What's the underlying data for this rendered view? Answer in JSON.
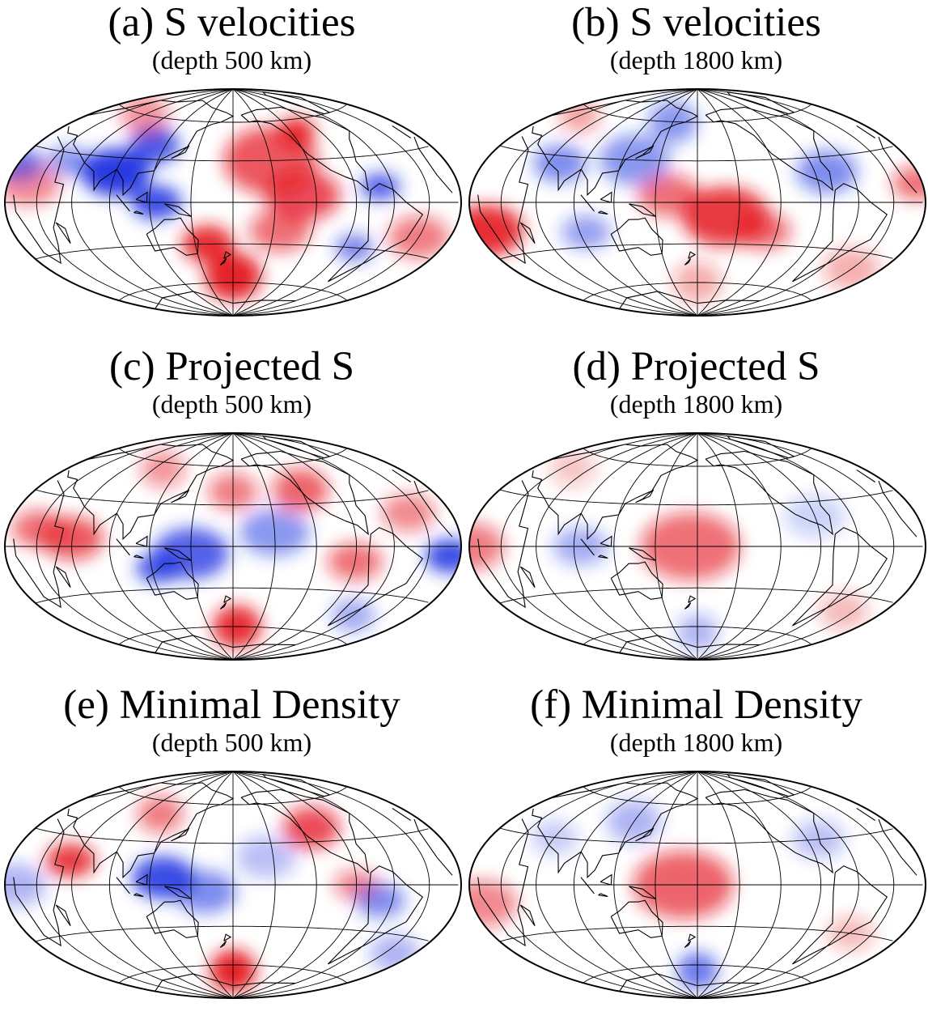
{
  "panels": [
    {
      "title": "(a) S velocities",
      "subtitle": "(depth 500 km)",
      "blobs": [
        {
          "lon": 90,
          "lat": 20,
          "r": 28,
          "c": "b",
          "a": 0.95
        },
        {
          "lon": 110,
          "lat": 40,
          "r": 22,
          "c": "b",
          "a": 0.8
        },
        {
          "lon": 125,
          "lat": 0,
          "r": 20,
          "c": "b",
          "a": 0.85
        },
        {
          "lon": 160,
          "lat": -30,
          "r": 22,
          "c": "r",
          "a": 0.9
        },
        {
          "lon": 180,
          "lat": -55,
          "r": 28,
          "c": "r",
          "a": 0.95
        },
        {
          "lon": 210,
          "lat": 30,
          "r": 40,
          "c": "r",
          "a": 0.7
        },
        {
          "lon": 230,
          "lat": 5,
          "r": 30,
          "c": "r",
          "a": 0.75
        },
        {
          "lon": 215,
          "lat": -20,
          "r": 25,
          "c": "r",
          "a": 0.6
        },
        {
          "lon": 245,
          "lat": 50,
          "r": 18,
          "c": "r",
          "a": 0.9
        },
        {
          "lon": 290,
          "lat": 10,
          "r": 16,
          "c": "b",
          "a": 0.75
        },
        {
          "lon": 280,
          "lat": -30,
          "r": 16,
          "c": "b",
          "a": 0.6
        },
        {
          "lon": 330,
          "lat": -20,
          "r": 25,
          "c": "r",
          "a": 0.55
        },
        {
          "lon": 20,
          "lat": 10,
          "r": 25,
          "c": "r",
          "a": 0.5
        },
        {
          "lon": 0,
          "lat": 20,
          "r": 20,
          "c": "b",
          "a": 0.6
        },
        {
          "lon": 60,
          "lat": 60,
          "r": 25,
          "c": "r",
          "a": 0.45
        },
        {
          "lon": 45,
          "lat": 25,
          "r": 18,
          "c": "b",
          "a": 0.5
        }
      ]
    },
    {
      "title": "(b) S velocities",
      "subtitle": "(depth 1800 km)",
      "blobs": [
        {
          "lon": 10,
          "lat": -15,
          "r": 30,
          "c": "r",
          "a": 0.9
        },
        {
          "lon": 355,
          "lat": 10,
          "r": 20,
          "c": "r",
          "a": 0.6
        },
        {
          "lon": 200,
          "lat": -10,
          "r": 35,
          "c": "r",
          "a": 0.85
        },
        {
          "lon": 160,
          "lat": 5,
          "r": 25,
          "c": "r",
          "a": 0.6
        },
        {
          "lon": 230,
          "lat": -20,
          "r": 22,
          "c": "r",
          "a": 0.6
        },
        {
          "lon": 130,
          "lat": 30,
          "r": 30,
          "c": "b",
          "a": 0.5
        },
        {
          "lon": 70,
          "lat": 25,
          "r": 22,
          "c": "b",
          "a": 0.55
        },
        {
          "lon": 280,
          "lat": 20,
          "r": 25,
          "c": "b",
          "a": 0.55
        },
        {
          "lon": 95,
          "lat": -20,
          "r": 20,
          "c": "b",
          "a": 0.45
        },
        {
          "lon": 150,
          "lat": 60,
          "r": 25,
          "c": "b",
          "a": 0.5
        },
        {
          "lon": 30,
          "lat": 55,
          "r": 20,
          "c": "r",
          "a": 0.4
        },
        {
          "lon": 330,
          "lat": -40,
          "r": 25,
          "c": "r",
          "a": 0.35
        },
        {
          "lon": 180,
          "lat": -60,
          "r": 25,
          "c": "r",
          "a": 0.35
        }
      ]
    },
    {
      "title": "(c) Projected S",
      "subtitle": "(depth 500 km)",
      "blobs": [
        {
          "lon": 150,
          "lat": -5,
          "r": 30,
          "c": "b",
          "a": 0.75
        },
        {
          "lon": 125,
          "lat": -15,
          "r": 18,
          "c": "b",
          "a": 0.8
        },
        {
          "lon": 210,
          "lat": 10,
          "r": 28,
          "c": "b",
          "a": 0.5
        },
        {
          "lon": 185,
          "lat": -60,
          "r": 25,
          "c": "r",
          "a": 0.9
        },
        {
          "lon": 60,
          "lat": 5,
          "r": 25,
          "c": "r",
          "a": 0.7
        },
        {
          "lon": 30,
          "lat": 10,
          "r": 22,
          "c": "r",
          "a": 0.6
        },
        {
          "lon": 240,
          "lat": 40,
          "r": 25,
          "c": "r",
          "a": 0.65
        },
        {
          "lon": 270,
          "lat": -10,
          "r": 22,
          "c": "r",
          "a": 0.6
        },
        {
          "lon": 180,
          "lat": 40,
          "r": 22,
          "c": "r",
          "a": 0.55
        },
        {
          "lon": 350,
          "lat": -5,
          "r": 20,
          "c": "b",
          "a": 0.85
        },
        {
          "lon": 320,
          "lat": 20,
          "r": 22,
          "c": "r",
          "a": 0.5
        },
        {
          "lon": 100,
          "lat": 55,
          "r": 22,
          "c": "r",
          "a": 0.45
        },
        {
          "lon": 300,
          "lat": -45,
          "r": 20,
          "c": "b",
          "a": 0.4
        }
      ]
    },
    {
      "title": "(d) Projected S",
      "subtitle": "(depth 1800 km)",
      "blobs": [
        {
          "lon": 175,
          "lat": 0,
          "r": 40,
          "c": "r",
          "a": 0.6
        },
        {
          "lon": 0,
          "lat": 0,
          "r": 28,
          "c": "r",
          "a": 0.55
        },
        {
          "lon": 95,
          "lat": 0,
          "r": 22,
          "c": "b",
          "a": 0.4
        },
        {
          "lon": 180,
          "lat": -65,
          "r": 22,
          "c": "b",
          "a": 0.35
        },
        {
          "lon": 270,
          "lat": 20,
          "r": 25,
          "c": "b",
          "a": 0.2
        },
        {
          "lon": 320,
          "lat": -40,
          "r": 22,
          "c": "r",
          "a": 0.3
        },
        {
          "lon": 40,
          "lat": 50,
          "r": 22,
          "c": "r",
          "a": 0.25
        }
      ]
    },
    {
      "title": "(e) Minimal Density",
      "subtitle": "(depth 500 km)",
      "blobs": [
        {
          "lon": 130,
          "lat": 5,
          "r": 25,
          "c": "b",
          "a": 0.85
        },
        {
          "lon": 160,
          "lat": -5,
          "r": 25,
          "c": "b",
          "a": 0.55
        },
        {
          "lon": 180,
          "lat": -65,
          "r": 25,
          "c": "r",
          "a": 0.95
        },
        {
          "lon": 55,
          "lat": 15,
          "r": 20,
          "c": "r",
          "a": 0.85
        },
        {
          "lon": 105,
          "lat": 50,
          "r": 22,
          "c": "r",
          "a": 0.55
        },
        {
          "lon": 250,
          "lat": 40,
          "r": 25,
          "c": "r",
          "a": 0.75
        },
        {
          "lon": 270,
          "lat": 0,
          "r": 18,
          "c": "r",
          "a": 0.5
        },
        {
          "lon": 205,
          "lat": 20,
          "r": 25,
          "c": "b",
          "a": 0.3
        },
        {
          "lon": 290,
          "lat": -10,
          "r": 20,
          "c": "b",
          "a": 0.55
        },
        {
          "lon": 10,
          "lat": 0,
          "r": 25,
          "c": "b",
          "a": 0.35
        },
        {
          "lon": 340,
          "lat": -40,
          "r": 22,
          "c": "b",
          "a": 0.35
        }
      ]
    },
    {
      "title": "(f) Minimal Density",
      "subtitle": "(depth 1800 km)",
      "blobs": [
        {
          "lon": 170,
          "lat": 0,
          "r": 40,
          "c": "r",
          "a": 0.65
        },
        {
          "lon": 10,
          "lat": -10,
          "r": 28,
          "c": "r",
          "a": 0.5
        },
        {
          "lon": 180,
          "lat": -65,
          "r": 22,
          "c": "b",
          "a": 0.65
        },
        {
          "lon": 120,
          "lat": 45,
          "r": 25,
          "c": "b",
          "a": 0.35
        },
        {
          "lon": 280,
          "lat": 30,
          "r": 22,
          "c": "b",
          "a": 0.3
        },
        {
          "lon": 60,
          "lat": 30,
          "r": 20,
          "c": "b",
          "a": 0.25
        },
        {
          "lon": 310,
          "lat": -30,
          "r": 20,
          "c": "r",
          "a": 0.3
        }
      ]
    }
  ],
  "colors": {
    "positive": "#e4161f",
    "negative": "#1a2fe0",
    "neutral": "#ffffff"
  },
  "projection": "Hammer-Aitoff, centered 180°",
  "graticule_step_lon": 30,
  "graticule_step_lat": 30
}
